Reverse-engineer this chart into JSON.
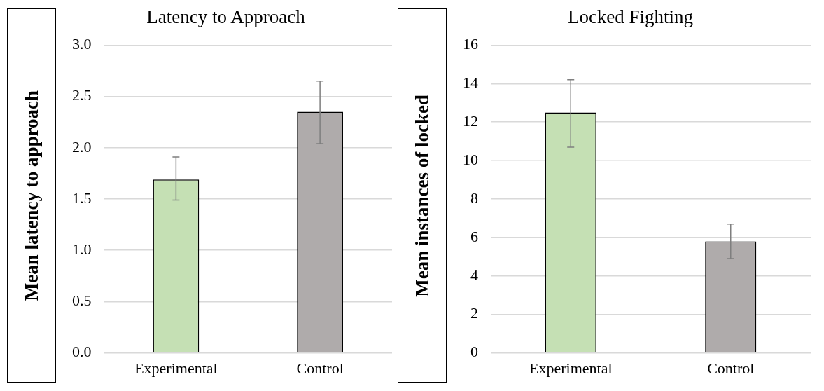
{
  "chart_data": [
    {
      "type": "bar",
      "title": "Latency to Approach",
      "ylabel": "Mean latency to approach",
      "categories": [
        "Experimental",
        "Control"
      ],
      "values": [
        1.69,
        2.35
      ],
      "colors": [
        "#c5e0b4",
        "#afabab"
      ],
      "errors": [
        [
          1.49,
          1.91
        ],
        [
          2.04,
          2.65
        ]
      ],
      "ylim": [
        0,
        3
      ],
      "yticks": [
        {
          "value": 0,
          "label": "0.0"
        },
        {
          "value": 0.5,
          "label": "0.5"
        },
        {
          "value": 1,
          "label": "1.0"
        },
        {
          "value": 1.5,
          "label": "1.5"
        },
        {
          "value": 2,
          "label": "2.0"
        },
        {
          "value": 2.5,
          "label": "2.5"
        },
        {
          "value": 3,
          "label": "3.0"
        }
      ],
      "grid": "y",
      "legend": false
    },
    {
      "type": "bar",
      "title": "Locked Fighting",
      "ylabel": "Mean instances of locked",
      "categories": [
        "Experimental",
        "Control"
      ],
      "values": [
        12.5,
        5.8
      ],
      "colors": [
        "#c5e0b4",
        "#afabab"
      ],
      "errors": [
        [
          10.7,
          14.2
        ],
        [
          4.9,
          6.7
        ]
      ],
      "ylim": [
        0,
        16
      ],
      "yticks": [
        0,
        2,
        4,
        6,
        8,
        10,
        12,
        14,
        16
      ],
      "grid": "y",
      "legend": false
    }
  ]
}
